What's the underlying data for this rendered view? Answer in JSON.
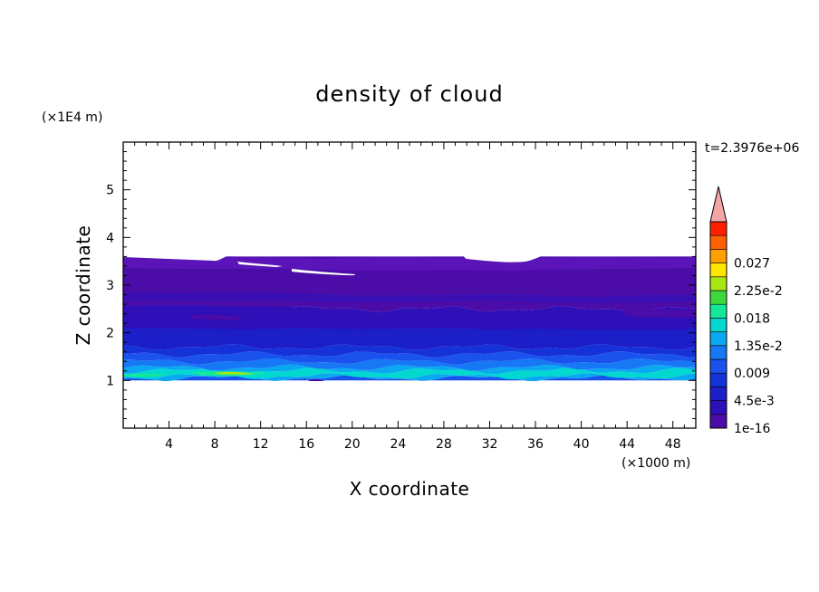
{
  "chart_data": {
    "type": "heatmap",
    "title": "density of cloud",
    "xlabel": "X coordinate",
    "ylabel": "Z coordinate",
    "x_unit": "(×1000 m)",
    "y_unit": "(×1E4 m)",
    "time_label": "t=2.3976e+06",
    "xlim": [
      0,
      50
    ],
    "ylim": [
      0,
      6
    ],
    "x_ticks": [
      4,
      8,
      12,
      16,
      20,
      24,
      28,
      32,
      36,
      40,
      44,
      48
    ],
    "y_ticks": [
      1,
      2,
      3,
      4,
      5
    ],
    "colorbar": {
      "levels": [
        1e-16,
        0.00225,
        0.0045,
        0.00675,
        0.009,
        0.01125,
        0.0135,
        0.01575,
        0.018,
        0.02025,
        0.0225,
        0.02475,
        0.027,
        0.02925
      ],
      "labels": [
        {
          "level": 1e-16,
          "text": "1e-16"
        },
        {
          "level": 0.0045,
          "text": "4.5e-3"
        },
        {
          "level": 0.009,
          "text": "0.009"
        },
        {
          "level": 0.0135,
          "text": "1.35e-2"
        },
        {
          "level": 0.018,
          "text": "0.018"
        },
        {
          "level": 0.0225,
          "text": "2.25e-2"
        },
        {
          "level": 0.027,
          "text": "0.027"
        }
      ],
      "colors": [
        "#4b0ca8",
        "#2e0fb8",
        "#1c1ec8",
        "#1432d8",
        "#1a52ee",
        "#1678f5",
        "#0aa8f0",
        "#00d8d0",
        "#14e89a",
        "#3cd83c",
        "#a8e614",
        "#ffe600",
        "#ffa000",
        "#ff6000",
        "#ff2000"
      ],
      "overflow_color": "#f4a6a6"
    },
    "regions": [
      {
        "z_min": 1.0,
        "z_max": 1.05,
        "level_index": 4
      },
      {
        "z_min": 1.05,
        "z_max": 1.09,
        "level_index": 6
      },
      {
        "z_min": 1.09,
        "z_max": 1.2,
        "level_index": 7
      },
      {
        "z_min": 1.2,
        "z_max": 1.27,
        "level_index": 6
      },
      {
        "z_min": 1.27,
        "z_max": 1.4,
        "level_index": 5
      },
      {
        "z_min": 1.4,
        "z_max": 1.55,
        "level_index": 4
      },
      {
        "z_min": 1.55,
        "z_max": 1.7,
        "level_index": 3
      },
      {
        "z_min": 1.7,
        "z_max": 2.0,
        "level_index": 2
      },
      {
        "z_min": 2.0,
        "z_max": 2.5,
        "level_index": 1
      },
      {
        "z_min": 2.5,
        "z_max": 3.6,
        "level_index": 0
      }
    ]
  }
}
